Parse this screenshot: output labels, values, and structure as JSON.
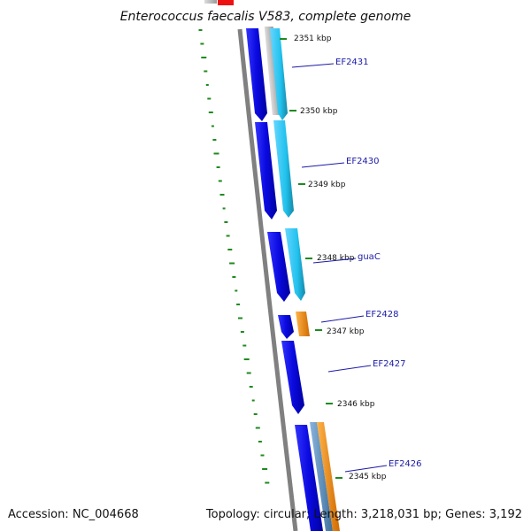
{
  "title": "Enterococcus faecalis V583, complete genome",
  "footer": {
    "accession": "Accession: NC_004668",
    "summary": "Topology: circular; Length: 3,218,031 bp; Genes: 3,192"
  },
  "colors": {
    "backbone": "#808080",
    "forward_cds": "#0a0ae0",
    "reverse_cds": "#22c2ee",
    "orange_feature": "#f08a14",
    "grey_feature": "#b8b8b8",
    "steel_feature": "#5a8fbf",
    "red_feature": "#ee1111",
    "gc_skew": "#1f8a1f",
    "label": "#1a1aa6"
  },
  "ticks": [
    "2351 kbp",
    "2350 kbp",
    "2349 kbp",
    "2348 kbp",
    "2347 kbp",
    "2346 kbp",
    "2345 kbp"
  ],
  "genes": [
    "EF2431",
    "EF2430",
    "guaC",
    "EF2428",
    "EF2427",
    "EF2426"
  ]
}
